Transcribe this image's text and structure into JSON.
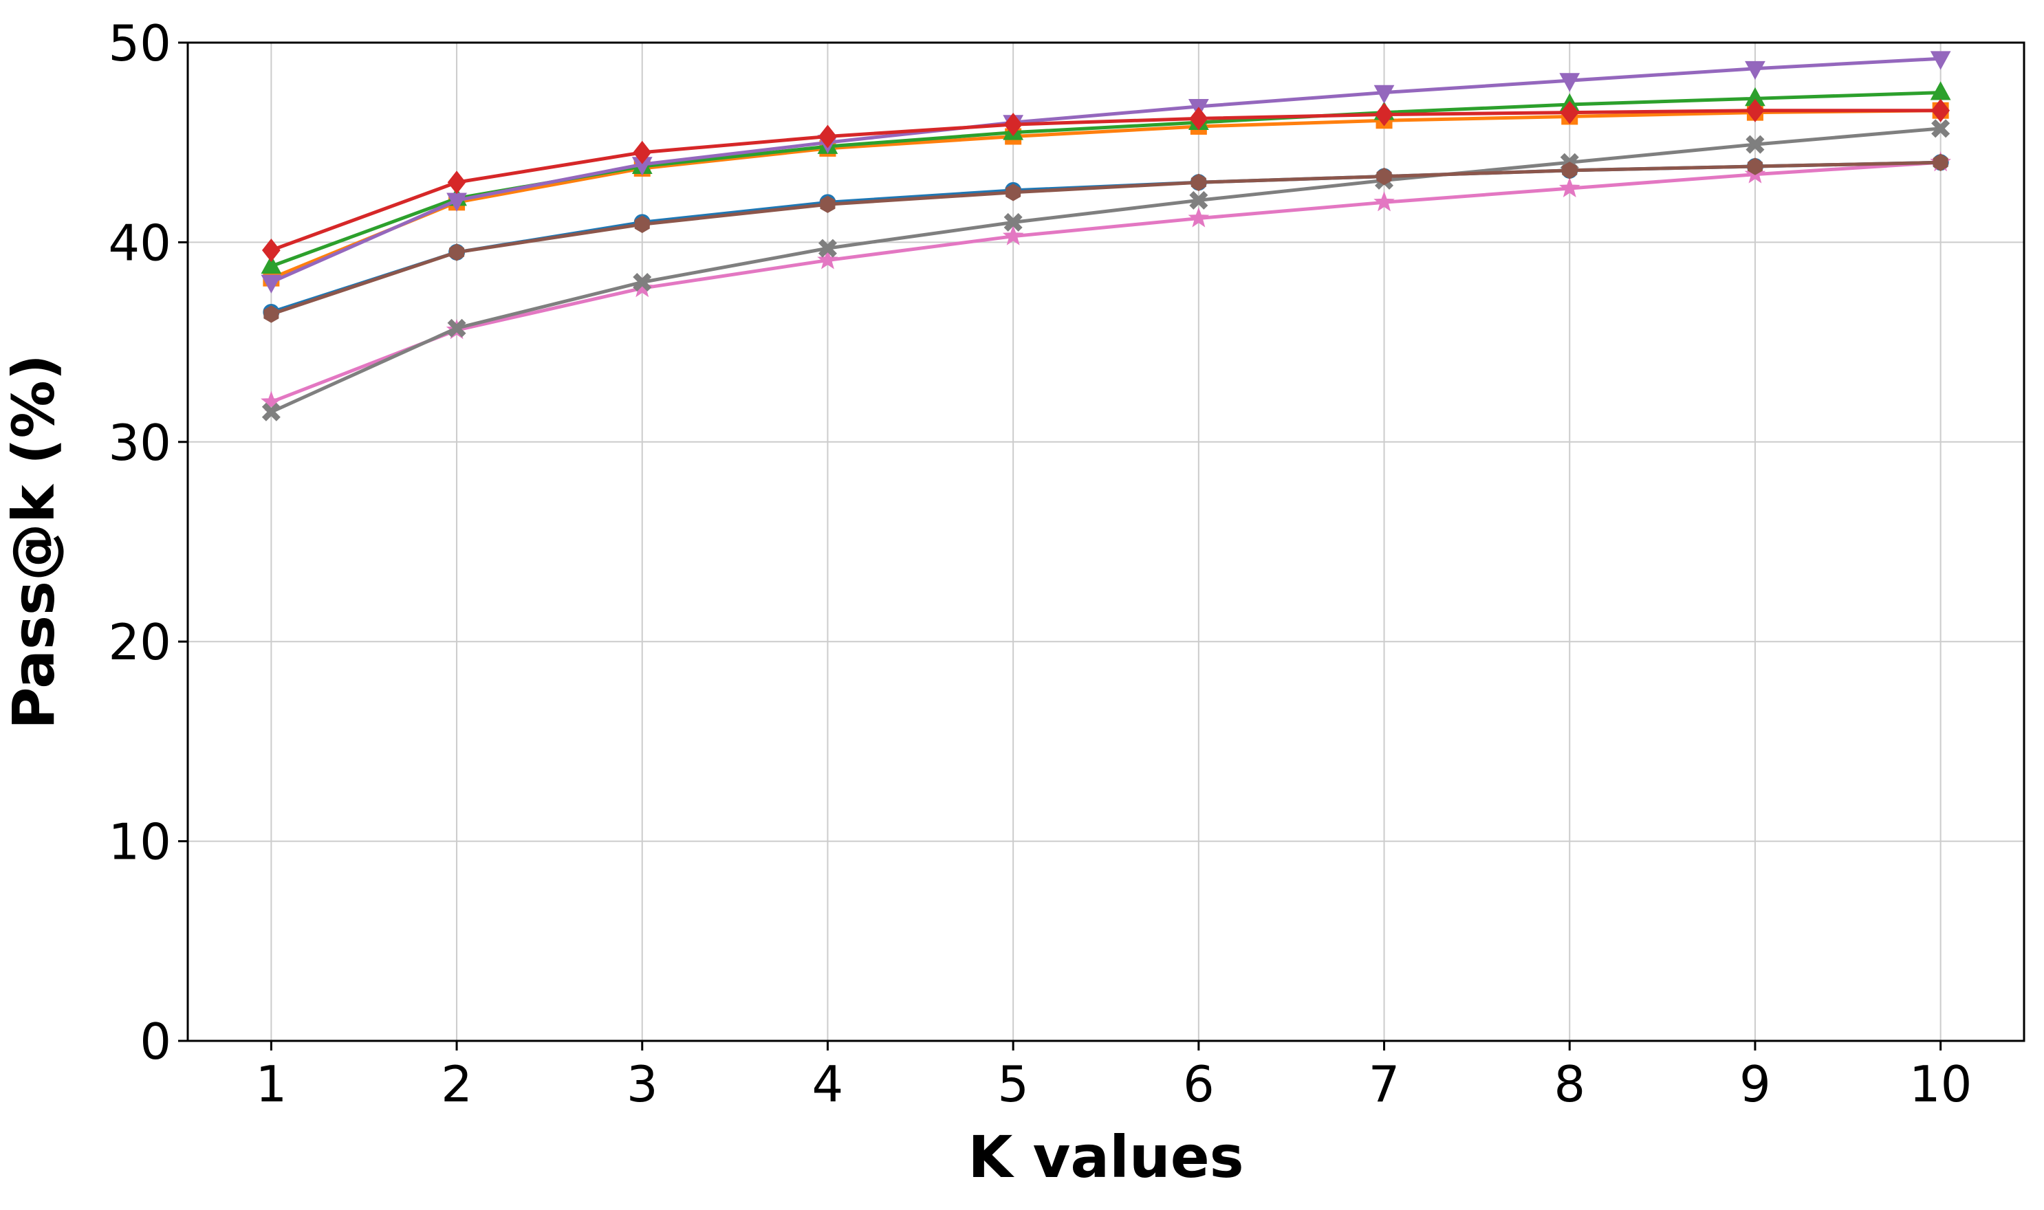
{
  "chart_data": {
    "type": "line",
    "xlabel": "K values",
    "ylabel": "Pass@k (%)",
    "xlim": [
      0.55,
      10.45
    ],
    "ylim": [
      0,
      50
    ],
    "xticks": [
      1,
      2,
      3,
      4,
      5,
      6,
      7,
      8,
      9,
      10
    ],
    "yticks": [
      0,
      10,
      20,
      30,
      40,
      50
    ],
    "grid": true,
    "x": [
      1,
      2,
      3,
      4,
      5,
      6,
      7,
      8,
      9,
      10
    ],
    "series": [
      {
        "color": "#1f77b4",
        "marker": "circle",
        "values": [
          36.5,
          39.5,
          41.0,
          42.0,
          42.6,
          43.0,
          43.3,
          43.6,
          43.8,
          44.0
        ]
      },
      {
        "color": "#ff7f0e",
        "marker": "square",
        "values": [
          38.2,
          42.0,
          43.7,
          44.7,
          45.3,
          45.8,
          46.1,
          46.3,
          46.5,
          46.6
        ]
      },
      {
        "color": "#2ca02c",
        "marker": "triangle-up",
        "values": [
          38.8,
          42.2,
          43.8,
          44.8,
          45.5,
          46.0,
          46.5,
          46.9,
          47.2,
          47.5
        ]
      },
      {
        "color": "#9467bd",
        "marker": "triangle-down",
        "values": [
          38.0,
          42.1,
          43.9,
          45.0,
          46.0,
          46.8,
          47.5,
          48.1,
          48.7,
          49.2
        ]
      },
      {
        "color": "#e377c2",
        "marker": "star",
        "values": [
          32.0,
          35.6,
          37.7,
          39.1,
          40.3,
          41.2,
          42.0,
          42.7,
          43.4,
          44.0
        ]
      },
      {
        "color": "#7f7f7f",
        "marker": "x",
        "values": [
          31.5,
          35.7,
          38.0,
          39.7,
          41.0,
          42.1,
          43.1,
          44.0,
          44.9,
          45.7
        ]
      },
      {
        "color": "#8c564b",
        "marker": "hexagon",
        "values": [
          36.4,
          39.5,
          40.9,
          41.9,
          42.5,
          43.0,
          43.3,
          43.6,
          43.8,
          44.0
        ]
      },
      {
        "color": "#d62728",
        "marker": "diamond",
        "values": [
          39.6,
          43.0,
          44.5,
          45.3,
          45.9,
          46.2,
          46.4,
          46.5,
          46.6,
          46.6
        ]
      }
    ]
  }
}
